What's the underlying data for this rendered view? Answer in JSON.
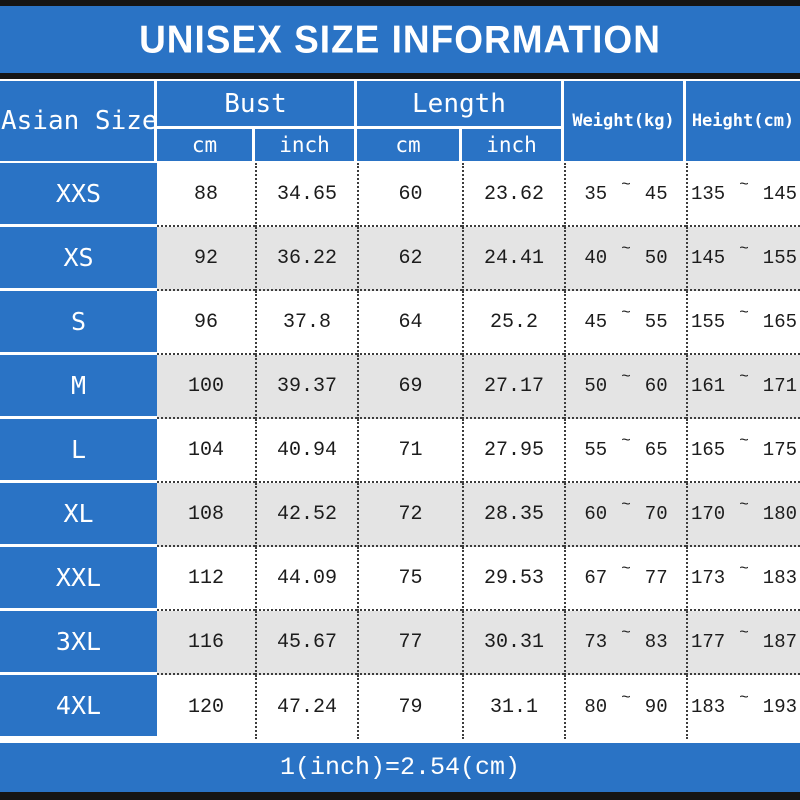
{
  "title": "UNISEX SIZE INFORMATION",
  "footer": {
    "note": "1(inch)=2.54(cm)"
  },
  "colors": {
    "accent_blue": "#2a73c5",
    "row_alt_gray": "#e4e4e4",
    "bar_black": "#151515"
  },
  "table": {
    "header": {
      "size_column": "Asian Size",
      "bust_group": "Bust",
      "length_group": "Length",
      "cm_label": "cm",
      "inch_label": "inch",
      "weight_column": "Weight(kg)",
      "height_column": "Height(cm)"
    },
    "range_separator": "~",
    "rows": [
      {
        "size": "XXS",
        "bust_cm": "88",
        "bust_inch": "34.65",
        "length_cm": "60",
        "length_inch": "23.62",
        "weight_low": "35",
        "weight_high": "45",
        "height_low": "135",
        "height_high": "145"
      },
      {
        "size": "XS",
        "bust_cm": "92",
        "bust_inch": "36.22",
        "length_cm": "62",
        "length_inch": "24.41",
        "weight_low": "40",
        "weight_high": "50",
        "height_low": "145",
        "height_high": "155"
      },
      {
        "size": "S",
        "bust_cm": "96",
        "bust_inch": "37.8",
        "length_cm": "64",
        "length_inch": "25.2",
        "weight_low": "45",
        "weight_high": "55",
        "height_low": "155",
        "height_high": "165"
      },
      {
        "size": "M",
        "bust_cm": "100",
        "bust_inch": "39.37",
        "length_cm": "69",
        "length_inch": "27.17",
        "weight_low": "50",
        "weight_high": "60",
        "height_low": "161",
        "height_high": "171"
      },
      {
        "size": "L",
        "bust_cm": "104",
        "bust_inch": "40.94",
        "length_cm": "71",
        "length_inch": "27.95",
        "weight_low": "55",
        "weight_high": "65",
        "height_low": "165",
        "height_high": "175"
      },
      {
        "size": "XL",
        "bust_cm": "108",
        "bust_inch": "42.52",
        "length_cm": "72",
        "length_inch": "28.35",
        "weight_low": "60",
        "weight_high": "70",
        "height_low": "170",
        "height_high": "180"
      },
      {
        "size": "XXL",
        "bust_cm": "112",
        "bust_inch": "44.09",
        "length_cm": "75",
        "length_inch": "29.53",
        "weight_low": "67",
        "weight_high": "77",
        "height_low": "173",
        "height_high": "183"
      },
      {
        "size": "3XL",
        "bust_cm": "116",
        "bust_inch": "45.67",
        "length_cm": "77",
        "length_inch": "30.31",
        "weight_low": "73",
        "weight_high": "83",
        "height_low": "177",
        "height_high": "187"
      },
      {
        "size": "4XL",
        "bust_cm": "120",
        "bust_inch": "47.24",
        "length_cm": "79",
        "length_inch": "31.1",
        "weight_low": "80",
        "weight_high": "90",
        "height_low": "183",
        "height_high": "193"
      }
    ]
  }
}
